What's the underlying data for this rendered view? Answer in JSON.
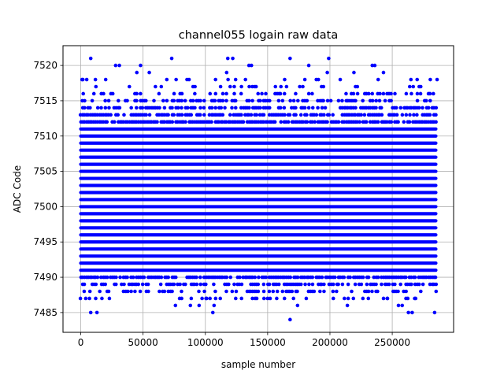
{
  "chart_data": {
    "type": "scatter",
    "title": "channel055 logain raw data",
    "xlabel": "sample number",
    "ylabel": "ADC Code",
    "xlim": [
      -14250,
      299250
    ],
    "ylim": [
      7482.2,
      7522.8
    ],
    "grid": true,
    "legend": "none",
    "marker_color": "#0000ff",
    "x_ticks": [
      0,
      50000,
      100000,
      150000,
      200000,
      250000
    ],
    "x_tick_labels": [
      "0",
      "50000",
      "100000",
      "150000",
      "200000",
      "250000"
    ],
    "y_ticks": [
      7485,
      7490,
      7495,
      7500,
      7505,
      7510,
      7515,
      7520
    ],
    "y_tick_labels": [
      "7485",
      "7490",
      "7495",
      "7500",
      "7505",
      "7510",
      "7515",
      "7520"
    ],
    "series": [
      {
        "dense_band": {
          "x_range": [
            0,
            285000
          ],
          "y_range": [
            7491,
            7511
          ],
          "step": 1
        },
        "value_range_by_x": [
          {
            "x": 0,
            "min": 7487,
            "max": 7518
          },
          {
            "x": 50000,
            "min": 7488,
            "max": 7520
          },
          {
            "x": 100000,
            "min": 7486,
            "max": 7519
          },
          {
            "x": 150000,
            "min": 7487,
            "max": 7520
          },
          {
            "x": 200000,
            "min": 7486,
            "max": 7521
          },
          {
            "x": 250000,
            "min": 7485,
            "max": 7519
          },
          {
            "x": 285000,
            "min": 7485,
            "max": 7518
          }
        ],
        "outliers": [
          [
            8000,
            7521
          ],
          [
            28000,
            7520
          ],
          [
            31000,
            7520
          ],
          [
            48000,
            7520
          ],
          [
            73000,
            7521
          ],
          [
            118000,
            7521
          ],
          [
            122000,
            7521
          ],
          [
            135000,
            7520
          ],
          [
            137000,
            7520
          ],
          [
            168000,
            7521
          ],
          [
            183000,
            7520
          ],
          [
            199000,
            7521
          ],
          [
            234000,
            7520
          ],
          [
            236000,
            7520
          ],
          [
            1000,
            7518
          ],
          [
            2000,
            7516
          ],
          [
            20000,
            7518
          ],
          [
            45000,
            7519
          ],
          [
            55000,
            7519
          ],
          [
            265000,
            7518
          ],
          [
            270000,
            7518
          ],
          [
            283000,
            7516
          ],
          [
            286000,
            7518
          ],
          [
            8000,
            7485
          ],
          [
            13000,
            7485
          ],
          [
            76000,
            7486
          ],
          [
            88000,
            7486
          ],
          [
            95000,
            7486
          ],
          [
            106000,
            7485
          ],
          [
            107000,
            7486
          ],
          [
            168000,
            7484
          ],
          [
            174000,
            7486
          ],
          [
            214000,
            7486
          ],
          [
            255000,
            7486
          ],
          [
            258000,
            7486
          ],
          [
            263000,
            7485
          ],
          [
            266000,
            7485
          ],
          [
            284000,
            7485
          ],
          [
            4000,
            7487
          ],
          [
            7000,
            7487
          ],
          [
            12000,
            7487
          ],
          [
            17000,
            7487
          ],
          [
            23000,
            7487
          ],
          [
            101000,
            7487
          ],
          [
            112000,
            7487
          ],
          [
            140000,
            7487
          ],
          [
            152000,
            7487
          ],
          [
            181000,
            7487
          ],
          [
            243000,
            7487
          ],
          [
            246000,
            7487
          ],
          [
            268000,
            7487
          ]
        ]
      }
    ]
  }
}
